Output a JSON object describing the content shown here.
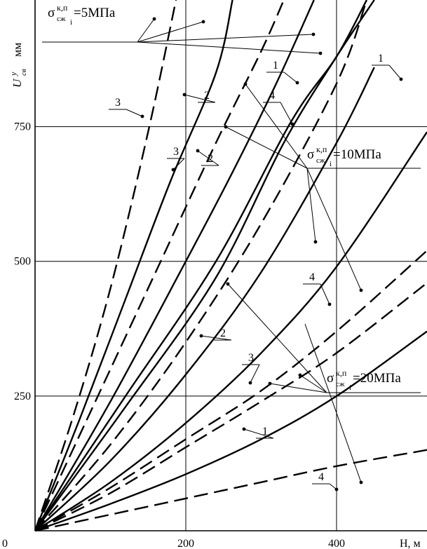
{
  "chart_data": {
    "type": "line",
    "title": "",
    "xlabel": "H, м",
    "ylabel": "U",
    "ylabel_sup": "у",
    "ylabel_sub": "св",
    "ylabel_unit": "мм",
    "xlim": [
      0,
      520
    ],
    "ylim": [
      0,
      985
    ],
    "x_ticks": [
      0,
      200,
      400
    ],
    "y_ticks": [
      250,
      500,
      750
    ],
    "x_tick_labels": [
      "0",
      "200",
      "400"
    ],
    "y_tick_labels": [
      "250",
      "500",
      "750"
    ],
    "grid": true,
    "series": [
      {
        "label": "3",
        "style": "dashed",
        "group": "5",
        "points": [
          [
            0,
            0
          ],
          [
            50,
            210
          ],
          [
            100,
            450
          ],
          [
            150,
            740
          ],
          [
            187,
            985
          ]
        ]
      },
      {
        "label": "2",
        "style": "solid",
        "group": "5",
        "points": [
          [
            0,
            0
          ],
          [
            60,
            210
          ],
          [
            120,
            430
          ],
          [
            180,
            650
          ],
          [
            240,
            850
          ],
          [
            262,
            985
          ]
        ]
      },
      {
        "label": "3",
        "style": "dashed",
        "group": "10",
        "points": [
          [
            0,
            0
          ],
          [
            80,
            240
          ],
          [
            160,
            480
          ],
          [
            240,
            720
          ],
          [
            300,
            890
          ],
          [
            330,
            985
          ]
        ]
      },
      {
        "label": "2",
        "style": "solid",
        "group": "10",
        "points": [
          [
            0,
            0
          ],
          [
            100,
            240
          ],
          [
            200,
            500
          ],
          [
            260,
            660
          ],
          [
            320,
            830
          ],
          [
            370,
            985
          ]
        ]
      },
      {
        "label": "4",
        "style": "solid",
        "group": "5",
        "points": [
          [
            0,
            0
          ],
          [
            120,
            250
          ],
          [
            240,
            500
          ],
          [
            340,
            760
          ],
          [
            400,
            880
          ],
          [
            440,
            985
          ]
        ]
      },
      {
        "label": "1",
        "style": "solid",
        "group": "5",
        "points": [
          [
            0,
            0
          ],
          [
            120,
            230
          ],
          [
            240,
            470
          ],
          [
            330,
            720
          ],
          [
            400,
            880
          ],
          [
            450,
            985
          ]
        ]
      },
      {
        "label": "4",
        "style": "dashed",
        "group": "10",
        "points": [
          [
            0,
            0
          ],
          [
            100,
            160
          ],
          [
            200,
            350
          ],
          [
            300,
            570
          ],
          [
            400,
            830
          ],
          [
            440,
            985
          ]
        ]
      },
      {
        "label": "2",
        "style": "solid",
        "group": "20",
        "points": [
          [
            0,
            0
          ],
          [
            100,
            130
          ],
          [
            200,
            290
          ],
          [
            300,
            480
          ],
          [
            400,
            720
          ],
          [
            450,
            860
          ]
        ]
      },
      {
        "label": "1",
        "style": "solid",
        "group": "10",
        "points": [
          [
            0,
            0
          ],
          [
            100,
            90
          ],
          [
            200,
            200
          ],
          [
            300,
            330
          ],
          [
            400,
            490
          ],
          [
            520,
            740
          ]
        ]
      },
      {
        "label": "3",
        "style": "dashed",
        "group": "20",
        "points": [
          [
            0,
            0
          ],
          [
            100,
            80
          ],
          [
            200,
            170
          ],
          [
            300,
            260
          ],
          [
            400,
            370
          ],
          [
            520,
            520
          ]
        ]
      },
      {
        "label": "4",
        "style": "dashed",
        "group": "20",
        "points": [
          [
            0,
            0
          ],
          [
            100,
            70
          ],
          [
            200,
            155
          ],
          [
            300,
            240
          ],
          [
            400,
            330
          ],
          [
            520,
            460
          ]
        ]
      },
      {
        "label": "1",
        "style": "solid",
        "group": "20",
        "points": [
          [
            0,
            0
          ],
          [
            100,
            50
          ],
          [
            200,
            105
          ],
          [
            300,
            170
          ],
          [
            400,
            250
          ],
          [
            520,
            370
          ]
        ]
      },
      {
        "label": "4",
        "style": "dashed",
        "group": "20",
        "points": [
          [
            0,
            0
          ],
          [
            100,
            30
          ],
          [
            200,
            60
          ],
          [
            300,
            90
          ],
          [
            400,
            120
          ],
          [
            520,
            150
          ]
        ]
      }
    ],
    "annotations": [
      {
        "text": "=5МПа",
        "sigma": "σ",
        "sup": "к,п",
        "sub": "сж",
        "subsub": "i"
      },
      {
        "text": "=10МПа",
        "sigma": "σ",
        "sup": "к,п",
        "sub": "сж",
        "subsub": "i"
      },
      {
        "text": "=20МПа",
        "sigma": "σ",
        "sup": "к,п",
        "sub": "сж",
        "subsub": "i"
      }
    ]
  }
}
